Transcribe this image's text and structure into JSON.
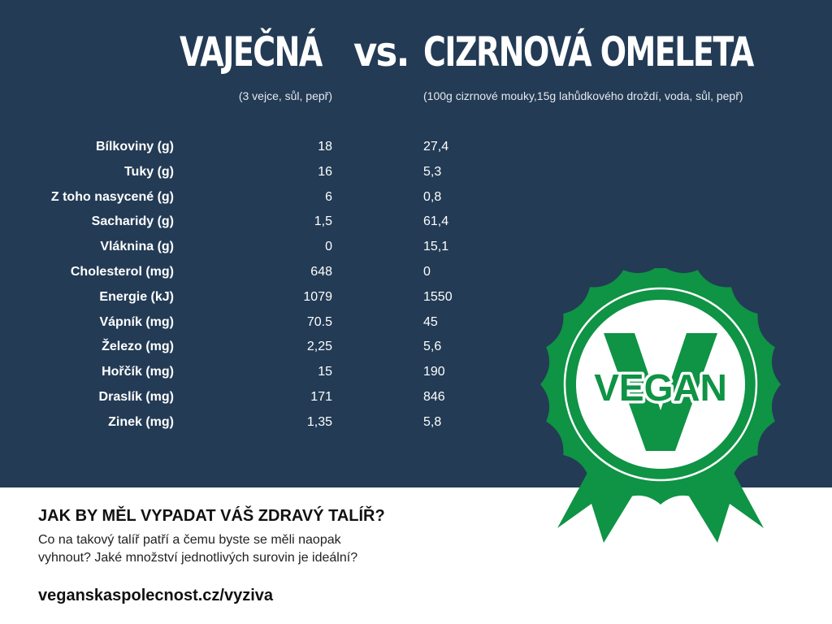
{
  "header": {
    "left_title": "VAJEČNÁ",
    "vs": "vs.",
    "right_title": "CIZRNOVÁ OMELETA",
    "left_subtitle": "(3 vejce, sůl, pepř)",
    "right_subtitle": "(100g cizrnové mouky,15g  lahůdkového droždí, voda, sůl, pepř)"
  },
  "nutrition": [
    {
      "label": "Bílkoviny (g)",
      "egg": "18",
      "chickpea": "27,4"
    },
    {
      "label": "Tuky (g)",
      "egg": "16",
      "chickpea": "5,3"
    },
    {
      "label": "Z toho nasycené (g)",
      "egg": "6",
      "chickpea": "0,8"
    },
    {
      "label": "Sacharidy (g)",
      "egg": "1,5",
      "chickpea": "61,4"
    },
    {
      "label": "Vláknina (g)",
      "egg": "0",
      "chickpea": "15,1"
    },
    {
      "label": "Cholesterol (mg)",
      "egg": "648",
      "chickpea": "0"
    },
    {
      "label": "Energie (kJ)",
      "egg": "1079",
      "chickpea": "1550"
    },
    {
      "label": "Vápník (mg)",
      "egg": "70.5",
      "chickpea": "45"
    },
    {
      "label": "Železo (mg)",
      "egg": "2,25",
      "chickpea": "5,6"
    },
    {
      "label": "Hořčík (mg)",
      "egg": "15",
      "chickpea": "190"
    },
    {
      "label": "Draslík (mg)",
      "egg": "171",
      "chickpea": "846"
    },
    {
      "label": "Zinek (mg)",
      "egg": "1,35",
      "chickpea": "5,8"
    }
  ],
  "badge": {
    "text": "VEGAN",
    "icon": "vegan-rosette-icon",
    "color": "#0f9344",
    "background": "#233b55"
  },
  "footer": {
    "question": "JAK BY MĚL VYPADAT VÁŠ ZDRAVÝ TALÍŘ?",
    "body_lines": [
      "Co na takový talíř patří a čemu byste se měli naopak",
      "vyhnout? Jaké množství jednotlivých surovin je ideální?"
    ],
    "link": "veganskaspolecnost.cz/vyziva"
  }
}
